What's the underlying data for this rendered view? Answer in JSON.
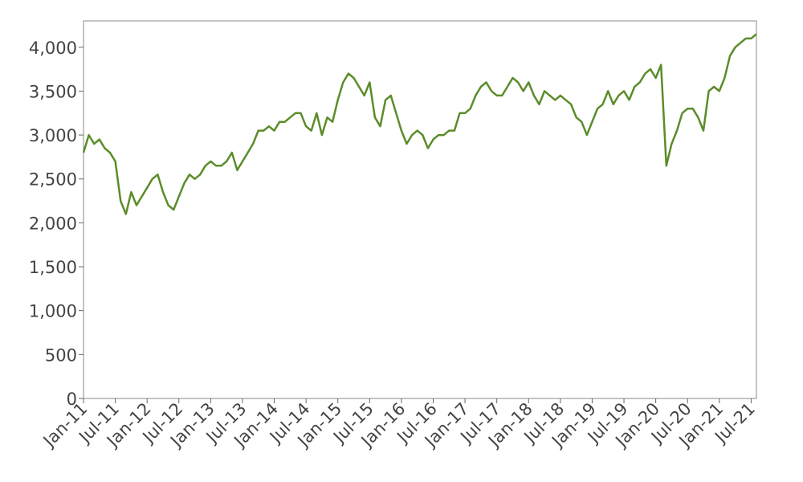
{
  "chart_data": {
    "type": "line",
    "x": [
      "2011-01",
      "2011-02",
      "2011-03",
      "2011-04",
      "2011-05",
      "2011-06",
      "2011-07",
      "2011-08",
      "2011-09",
      "2011-10",
      "2011-11",
      "2011-12",
      "2012-01",
      "2012-02",
      "2012-03",
      "2012-04",
      "2012-05",
      "2012-06",
      "2012-07",
      "2012-08",
      "2012-09",
      "2012-10",
      "2012-11",
      "2012-12",
      "2013-01",
      "2013-02",
      "2013-03",
      "2013-04",
      "2013-05",
      "2013-06",
      "2013-07",
      "2013-08",
      "2013-09",
      "2013-10",
      "2013-11",
      "2013-12",
      "2014-01",
      "2014-02",
      "2014-03",
      "2014-04",
      "2014-05",
      "2014-06",
      "2014-07",
      "2014-08",
      "2014-09",
      "2014-10",
      "2014-11",
      "2014-12",
      "2015-01",
      "2015-02",
      "2015-03",
      "2015-04",
      "2015-05",
      "2015-06",
      "2015-07",
      "2015-08",
      "2015-09",
      "2015-10",
      "2015-11",
      "2015-12",
      "2016-01",
      "2016-02",
      "2016-03",
      "2016-04",
      "2016-05",
      "2016-06",
      "2016-07",
      "2016-08",
      "2016-09",
      "2016-10",
      "2016-11",
      "2016-12",
      "2017-01",
      "2017-02",
      "2017-03",
      "2017-04",
      "2017-05",
      "2017-06",
      "2017-07",
      "2017-08",
      "2017-09",
      "2017-10",
      "2017-11",
      "2017-12",
      "2018-01",
      "2018-02",
      "2018-03",
      "2018-04",
      "2018-05",
      "2018-06",
      "2018-07",
      "2018-08",
      "2018-09",
      "2018-10",
      "2018-11",
      "2018-12",
      "2019-01",
      "2019-02",
      "2019-03",
      "2019-04",
      "2019-05",
      "2019-06",
      "2019-07",
      "2019-08",
      "2019-09",
      "2019-10",
      "2019-11",
      "2019-12",
      "2020-01",
      "2020-02",
      "2020-03",
      "2020-04",
      "2020-05",
      "2020-06",
      "2020-07",
      "2020-08",
      "2020-09",
      "2020-10",
      "2020-11",
      "2020-12",
      "2021-01",
      "2021-02",
      "2021-03",
      "2021-04",
      "2021-05",
      "2021-06",
      "2021-07",
      "2021-08"
    ],
    "series": [
      {
        "color": "#5b8c2a",
        "values": [
          2800,
          3000,
          2900,
          2950,
          2850,
          2800,
          2700,
          2250,
          2100,
          2350,
          2200,
          2300,
          2400,
          2500,
          2550,
          2350,
          2200,
          2150,
          2300,
          2450,
          2550,
          2500,
          2550,
          2650,
          2700,
          2650,
          2650,
          2700,
          2800,
          2600,
          2700,
          2800,
          2900,
          3050,
          3050,
          3100,
          3050,
          3150,
          3150,
          3200,
          3250,
          3250,
          3100,
          3050,
          3250,
          3000,
          3200,
          3150,
          3400,
          3600,
          3700,
          3650,
          3550,
          3450,
          3600,
          3200,
          3100,
          3400,
          3450,
          3250,
          3050,
          2900,
          3000,
          3050,
          3000,
          2850,
          2950,
          3000,
          3000,
          3050,
          3050,
          3250,
          3250,
          3300,
          3450,
          3550,
          3600,
          3500,
          3450,
          3450,
          3550,
          3650,
          3600,
          3500,
          3600,
          3450,
          3350,
          3500,
          3450,
          3400,
          3450,
          3400,
          3350,
          3200,
          3150,
          3000,
          3150,
          3300,
          3350,
          3500,
          3350,
          3450,
          3500,
          3400,
          3550,
          3600,
          3700,
          3750,
          3650,
          3800,
          2650,
          2900,
          3050,
          3250,
          3300,
          3300,
          3200,
          3050,
          3500,
          3550,
          3500,
          3650,
          3900,
          4000,
          4050,
          4100,
          4100,
          4150
        ]
      }
    ],
    "xlim": [
      "2011-01",
      "2021-08"
    ],
    "xticks": [
      {
        "value": "2011-01",
        "label": "Jan-11"
      },
      {
        "value": "2011-07",
        "label": "Jul-11"
      },
      {
        "value": "2012-01",
        "label": "Jan-12"
      },
      {
        "value": "2012-07",
        "label": "Jul-12"
      },
      {
        "value": "2013-01",
        "label": "Jan-13"
      },
      {
        "value": "2013-07",
        "label": "Jul-13"
      },
      {
        "value": "2014-01",
        "label": "Jan-14"
      },
      {
        "value": "2014-07",
        "label": "Jul-14"
      },
      {
        "value": "2015-01",
        "label": "Jan-15"
      },
      {
        "value": "2015-07",
        "label": "Jul-15"
      },
      {
        "value": "2016-01",
        "label": "Jan-16"
      },
      {
        "value": "2016-07",
        "label": "Jul-16"
      },
      {
        "value": "2017-01",
        "label": "Jan-17"
      },
      {
        "value": "2017-07",
        "label": "Jul-17"
      },
      {
        "value": "2018-01",
        "label": "Jan-18"
      },
      {
        "value": "2018-07",
        "label": "Jul-18"
      },
      {
        "value": "2019-01",
        "label": "Jan-19"
      },
      {
        "value": "2019-07",
        "label": "Jul-19"
      },
      {
        "value": "2020-01",
        "label": "Jan-20"
      },
      {
        "value": "2020-07",
        "label": "Jul-20"
      },
      {
        "value": "2021-01",
        "label": "Jan-21"
      },
      {
        "value": "2021-07",
        "label": "Jul-21"
      }
    ],
    "ylim": [
      0,
      4300
    ],
    "yticks": [
      0,
      500,
      {
        "value": 1000,
        "label": "1,000"
      },
      {
        "value": 1500,
        "label": "1,500"
      },
      {
        "value": 2000,
        "label": "2,000"
      },
      {
        "value": 2500,
        "label": "2,500"
      },
      {
        "value": 3000,
        "label": "3,000"
      },
      {
        "value": 3500,
        "label": "3,500"
      },
      {
        "value": 4000,
        "label": "4,000"
      }
    ],
    "grid": false
  }
}
